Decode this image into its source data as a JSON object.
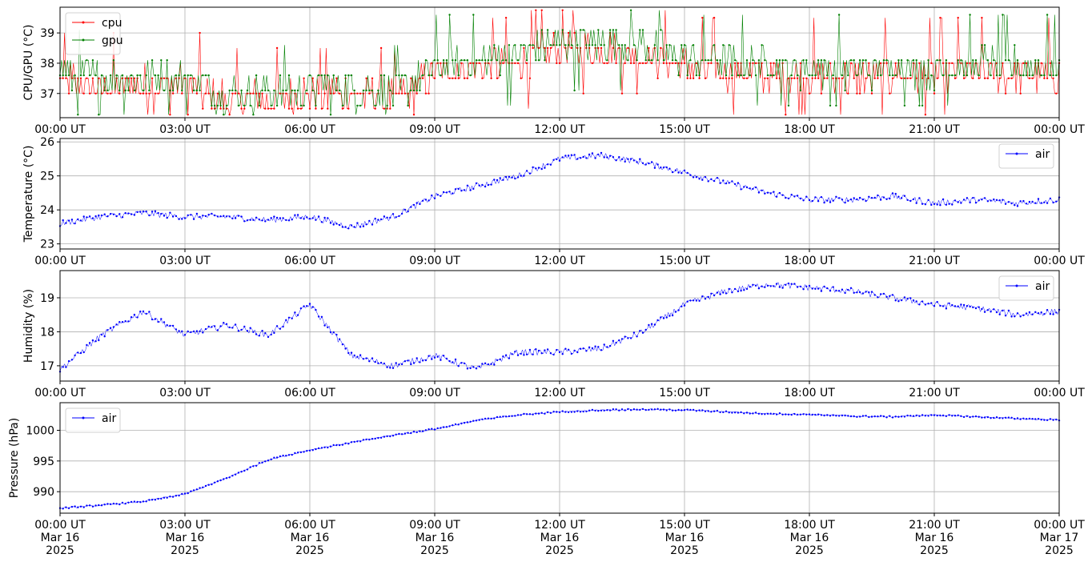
{
  "chart_data": [
    {
      "type": "line",
      "ylabel": "CPU/GPU (°C)",
      "ylim": [
        36.2,
        39.85
      ],
      "yticks": [
        37,
        38,
        39
      ],
      "grid": true,
      "legend_position": "top-left",
      "x_tick_labels": [
        "00:00 UT",
        "03:00 UT",
        "06:00 UT",
        "09:00 UT",
        "12:00 UT",
        "15:00 UT",
        "18:00 UT",
        "21:00 UT",
        "00:00 UT"
      ],
      "x_hours": [
        0,
        1,
        2,
        3,
        4,
        5,
        6,
        7,
        8,
        9,
        10,
        11,
        12,
        13,
        14,
        15,
        16,
        17,
        18,
        19,
        20,
        21,
        22,
        23,
        24
      ],
      "series": [
        {
          "name": "cpu",
          "color": "#ff0000",
          "values": [
            37.5,
            37.2,
            37.3,
            37.3,
            36.8,
            36.8,
            37.0,
            37.0,
            36.8,
            37.6,
            37.9,
            38.0,
            38.4,
            38.5,
            38.3,
            37.9,
            37.7,
            37.6,
            37.6,
            37.5,
            37.6,
            37.6,
            37.7,
            37.6,
            37.6
          ]
        },
        {
          "name": "gpu",
          "color": "#008000",
          "values": [
            37.6,
            37.4,
            37.4,
            37.4,
            36.9,
            36.9,
            37.1,
            37.1,
            36.9,
            37.7,
            38.0,
            38.2,
            38.6,
            38.6,
            38.5,
            38.1,
            37.9,
            37.8,
            37.7,
            37.7,
            37.8,
            37.7,
            37.9,
            37.8,
            37.7
          ]
        }
      ]
    },
    {
      "type": "line",
      "ylabel": "Temperature (°C)",
      "ylim": [
        22.85,
        26.1
      ],
      "yticks": [
        23,
        24,
        25,
        26
      ],
      "grid": true,
      "legend_position": "top-right",
      "x_tick_labels": [
        "00:00 UT",
        "03:00 UT",
        "06:00 UT",
        "09:00 UT",
        "12:00 UT",
        "15:00 UT",
        "18:00 UT",
        "21:00 UT",
        "00:00 UT"
      ],
      "x_hours": [
        0,
        1,
        2,
        3,
        4,
        5,
        6,
        7,
        8,
        9,
        10,
        11,
        12,
        13,
        14,
        15,
        16,
        17,
        18,
        19,
        20,
        21,
        22,
        23,
        24
      ],
      "series": [
        {
          "name": "air",
          "color": "#0000ff",
          "values": [
            23.6,
            23.8,
            23.9,
            23.8,
            23.8,
            23.7,
            23.8,
            23.5,
            23.8,
            24.4,
            24.7,
            25.0,
            25.5,
            25.6,
            25.4,
            25.1,
            24.8,
            24.5,
            24.3,
            24.3,
            24.4,
            24.2,
            24.3,
            24.2,
            24.3
          ]
        }
      ]
    },
    {
      "type": "line",
      "ylabel": "Humidity (%)",
      "ylim": [
        16.55,
        19.8
      ],
      "yticks": [
        17,
        18,
        19
      ],
      "grid": true,
      "legend_position": "top-right",
      "x_tick_labels": [
        "00:00 UT",
        "03:00 UT",
        "06:00 UT",
        "09:00 UT",
        "12:00 UT",
        "15:00 UT",
        "18:00 UT",
        "21:00 UT",
        "00:00 UT"
      ],
      "x_hours": [
        0,
        1,
        2,
        3,
        4,
        5,
        6,
        7,
        8,
        9,
        10,
        11,
        12,
        13,
        14,
        15,
        16,
        17,
        18,
        19,
        20,
        21,
        22,
        23,
        24
      ],
      "series": [
        {
          "name": "air",
          "color": "#0000ff",
          "values": [
            16.9,
            17.9,
            18.6,
            17.9,
            18.2,
            17.9,
            18.8,
            17.3,
            17.0,
            17.3,
            16.9,
            17.4,
            17.4,
            17.5,
            18.0,
            18.8,
            19.2,
            19.4,
            19.3,
            19.2,
            19.0,
            18.8,
            18.7,
            18.5,
            18.6
          ]
        }
      ]
    },
    {
      "type": "line",
      "ylabel": "Pressure (hPa)",
      "ylim": [
        986.5,
        1004.5
      ],
      "yticks": [
        990,
        995,
        1000
      ],
      "grid": true,
      "legend_position": "top-left",
      "x_tick_labels": [
        "00:00 UT\nMar 16\n2025",
        "03:00 UT\nMar 16\n2025",
        "06:00 UT\nMar 16\n2025",
        "09:00 UT\nMar 16\n2025",
        "12:00 UT\nMar 16\n2025",
        "15:00 UT\nMar 16\n2025",
        "18:00 UT\nMar 16\n2025",
        "21:00 UT\nMar 16\n2025",
        "00:00 UT\nMar 17\n2025"
      ],
      "x_hours": [
        0,
        1,
        2,
        3,
        4,
        5,
        6,
        7,
        8,
        9,
        10,
        11,
        12,
        13,
        14,
        15,
        16,
        17,
        18,
        19,
        20,
        21,
        22,
        23,
        24
      ],
      "series": [
        {
          "name": "air",
          "color": "#0000ff",
          "values": [
            987.3,
            987.8,
            988.4,
            989.6,
            992.2,
            995.2,
            996.8,
            998.0,
            999.2,
            1000.2,
            1001.6,
            1002.5,
            1003.0,
            1003.3,
            1003.4,
            1003.3,
            1003.0,
            1002.7,
            1002.6,
            1002.3,
            1002.2,
            1002.5,
            1002.2,
            1001.9,
            1001.7
          ]
        }
      ]
    }
  ]
}
